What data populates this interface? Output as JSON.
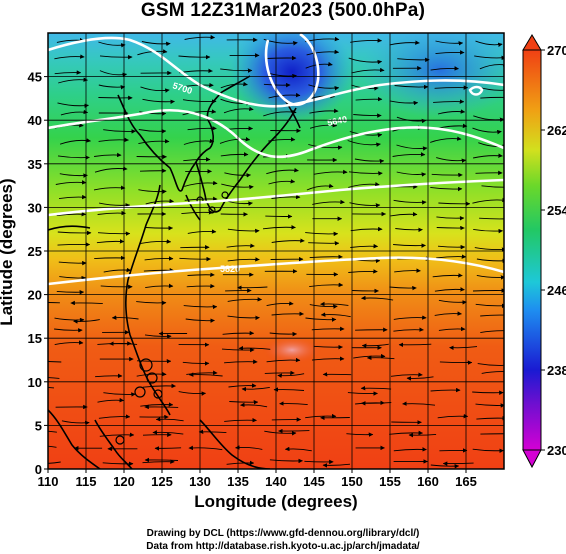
{
  "title": "GSM 12Z31Mar2023 (500.0hPa)",
  "xlabel": "Longitude (degrees)",
  "ylabel": "Latitude (degrees)",
  "credits": [
    "Drawing by DCL (https://www.gfd-dennou.org/library/dcl/)",
    "Data from http://database.rish.kyoto-u.ac.jp/arch/jmadata/"
  ],
  "chart_data": {
    "type": "heatmap",
    "variable": "temperature (K) with wind streamlines and height contours",
    "xlim": [
      110,
      170
    ],
    "ylim": [
      0,
      50
    ],
    "x_ticks": [
      110,
      115,
      120,
      125,
      130,
      135,
      140,
      145,
      150,
      155,
      160,
      165
    ],
    "y_ticks": [
      0,
      5,
      10,
      15,
      20,
      25,
      30,
      35,
      40,
      45
    ],
    "colorbar": {
      "min": 230,
      "max": 270,
      "tick_labels": [
        230,
        238,
        246,
        254,
        262,
        270
      ],
      "colors": [
        "#d400d4",
        "#1a1ad2",
        "#1ea0f0",
        "#22c896",
        "#2ad23c",
        "#b4e61e",
        "#f0dc14",
        "#f09614",
        "#f04614"
      ]
    },
    "contour_labels": [
      "5700",
      "5640",
      "5820"
    ]
  }
}
